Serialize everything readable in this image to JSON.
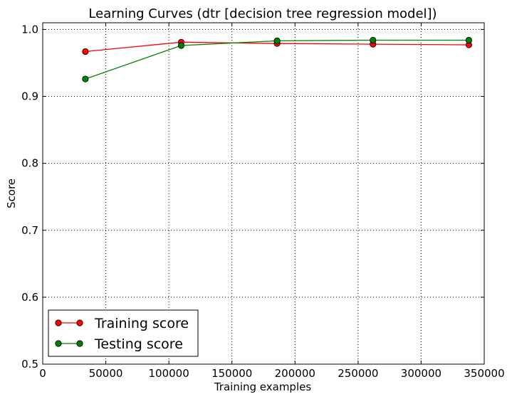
{
  "chart_data": {
    "type": "line",
    "title": "Learning Curves (dtr [decision tree regression model])",
    "xlabel": "Training examples",
    "ylabel": "Score",
    "xlim": [
      0,
      350000
    ],
    "ylim": [
      0.5,
      1.01
    ],
    "xticks": [
      0,
      50000,
      100000,
      150000,
      200000,
      250000,
      300000,
      350000
    ],
    "xtick_labels": [
      "0",
      "50000",
      "100000",
      "150000",
      "200000",
      "250000",
      "300000",
      "350000"
    ],
    "yticks": [
      0.5,
      0.6,
      0.7,
      0.8,
      0.9,
      1.0
    ],
    "ytick_labels": [
      "0.5",
      "0.6",
      "0.7",
      "0.8",
      "0.9",
      "1.0"
    ],
    "grid": true,
    "legend_position": "lower-left",
    "x": [
      33800,
      109800,
      185800,
      261800,
      337800
    ],
    "series": [
      {
        "name": "Training score",
        "values": [
          0.967,
          0.981,
          0.979,
          0.978,
          0.977
        ],
        "color": "#ff0000",
        "marker": "circle"
      },
      {
        "name": "Testing score",
        "values": [
          0.926,
          0.976,
          0.983,
          0.984,
          0.984
        ],
        "color": "#008000",
        "marker": "circle"
      }
    ]
  }
}
